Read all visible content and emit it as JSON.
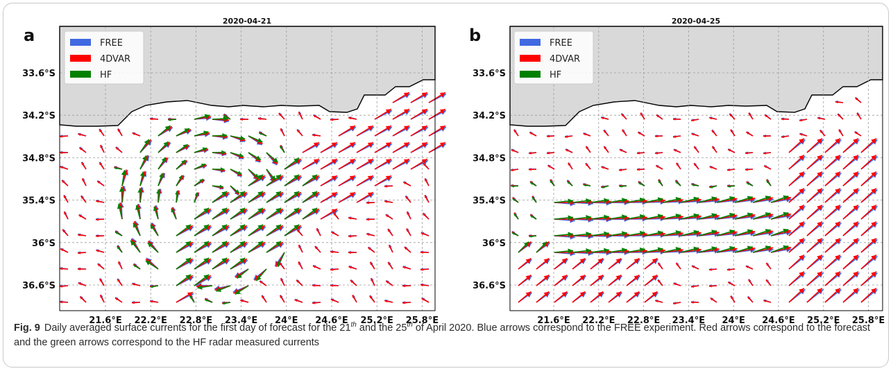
{
  "caption": {
    "label": "Fig. 9",
    "text_part1": "Daily averaged surface currents for the first day of forecast for the 21",
    "sup1": "th",
    "text_part2": " and the 25",
    "sup2": "th",
    "text_part3": " of April 2020. Blue arrows correspond to the FREE experiment. Red arrows correspond to the forecast and the green arrows correspond to the HF radar measured currents"
  },
  "chart_data": [
    {
      "type": "quiver",
      "panel_label": "a",
      "title": "2020-04-21",
      "x_ticks": [
        "21.6°E",
        "22.2°E",
        "22.8°E",
        "23.4°E",
        "24°E",
        "24.6°E",
        "25.2°E",
        "25.8°E"
      ],
      "y_ticks": [
        "33.6°S",
        "34.2°S",
        "34.8°S",
        "35.4°S",
        "36°S",
        "36.6°S"
      ],
      "xlim": [
        21.0,
        26.0
      ],
      "ylim": [
        -37.0,
        -33.0
      ],
      "grid": true,
      "legend_position": "top-left",
      "legend": [
        {
          "name": "FREE",
          "color": "#4169e1"
        },
        {
          "name": "4DVAR",
          "color": "#ff0000"
        },
        {
          "name": "HF",
          "color": "#008000"
        }
      ],
      "land_color": "#d9d9d9"
    },
    {
      "type": "quiver",
      "panel_label": "b",
      "title": "2020-04-25",
      "x_ticks": [
        "21.6°E",
        "22.2°E",
        "22.8°E",
        "23.4°E",
        "24°E",
        "24.6°E",
        "25.2°E",
        "25.8°E"
      ],
      "y_ticks": [
        "33.6°S",
        "34.2°S",
        "34.8°S",
        "35.4°S",
        "36°S",
        "36.6°S"
      ],
      "xlim": [
        21.0,
        26.0
      ],
      "ylim": [
        -37.0,
        -33.0
      ],
      "grid": true,
      "legend_position": "top-left",
      "legend": [
        {
          "name": "FREE",
          "color": "#4169e1"
        },
        {
          "name": "4DVAR",
          "color": "#ff0000"
        },
        {
          "name": "HF",
          "color": "#008000"
        }
      ],
      "land_color": "#d9d9d9"
    }
  ]
}
